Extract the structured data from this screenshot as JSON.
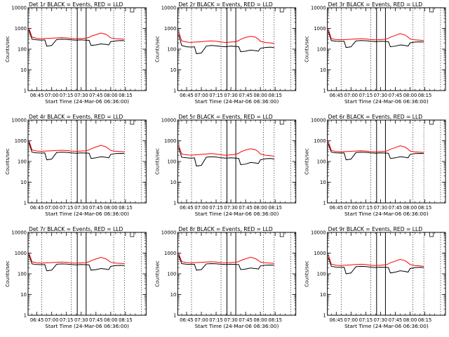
{
  "figure": {
    "ylabel": "Counts/sec",
    "xlabel": "Start Time (24-Mar-06 06:36:00)",
    "colors": {
      "events": "#000000",
      "lld": "#ff0000",
      "background": "#ffffff"
    }
  },
  "chart_data": [
    {
      "type": "line",
      "title": "Det 1r BLACK = Events, RED = LLD",
      "ylabel": "Counts/sec",
      "xlabel": "Start Time (24-Mar-06 06:36:00)",
      "y_scale": "log",
      "ylim": [
        1,
        10000
      ],
      "y_ticks": [
        "1",
        "10",
        "100",
        "1000",
        "10000"
      ],
      "x_ticks": [
        "06:45",
        "07:00",
        "07:15",
        "07:30",
        "07:45",
        "08:00",
        "08:15"
      ],
      "x": [
        "06:37",
        "06:40",
        "06:45",
        "06:50",
        "06:53",
        "06:55",
        "07:00",
        "07:05",
        "07:10",
        "07:15",
        "07:20",
        "07:25",
        "07:30",
        "07:35",
        "07:38",
        "07:40",
        "07:45",
        "07:50",
        "07:55",
        "07:58",
        "08:00",
        "08:05",
        "08:10",
        "08:14"
      ],
      "series": [
        {
          "name": "BLACK = Events",
          "values": [
            800,
            300,
            280,
            270,
            280,
            140,
            150,
            290,
            300,
            295,
            280,
            270,
            280,
            270,
            265,
            150,
            160,
            180,
            170,
            160,
            230,
            250,
            260,
            255
          ]
        },
        {
          "name": "RED = LLD",
          "values": [
            1000,
            380,
            330,
            320,
            330,
            330,
            340,
            350,
            360,
            350,
            330,
            320,
            330,
            340,
            370,
            420,
            500,
            600,
            520,
            420,
            350,
            320,
            310,
            300
          ]
        }
      ]
    },
    {
      "type": "line",
      "title": "Det 2r BLACK = Events, RED = LLD",
      "ylabel": "Counts/sec",
      "xlabel": "Start Time (24-Mar-06 06:36:00)",
      "y_scale": "log",
      "ylim": [
        1,
        10000
      ],
      "y_ticks": [
        "1",
        "10",
        "100",
        "1000",
        "10000"
      ],
      "x_ticks": [
        "06:45",
        "07:00",
        "07:15",
        "07:30",
        "07:45",
        "08:00",
        "08:15"
      ],
      "x": [
        "06:37",
        "06:40",
        "06:45",
        "06:50",
        "06:53",
        "06:55",
        "07:00",
        "07:05",
        "07:10",
        "07:15",
        "07:20",
        "07:25",
        "07:30",
        "07:35",
        "07:38",
        "07:40",
        "07:45",
        "07:50",
        "07:55",
        "07:58",
        "08:00",
        "08:05",
        "08:10",
        "08:14"
      ],
      "series": [
        {
          "name": "BLACK = Events",
          "values": [
            500,
            150,
            130,
            125,
            130,
            60,
            65,
            140,
            150,
            145,
            135,
            130,
            140,
            135,
            130,
            75,
            80,
            90,
            85,
            80,
            110,
            120,
            125,
            120
          ]
        },
        {
          "name": "RED = LLD",
          "values": [
            700,
            250,
            220,
            210,
            220,
            220,
            230,
            240,
            250,
            240,
            220,
            210,
            220,
            230,
            260,
            300,
            370,
            420,
            380,
            300,
            240,
            210,
            200,
            190
          ]
        }
      ]
    },
    {
      "type": "line",
      "title": "Det 3r BLACK = Events, RED = LLD",
      "ylabel": "Counts/sec",
      "xlabel": "Start Time (24-Mar-06 06:36:00)",
      "y_scale": "log",
      "ylim": [
        1,
        10000
      ],
      "y_ticks": [
        "1",
        "10",
        "100",
        "1000",
        "10000"
      ],
      "x_ticks": [
        "06:45",
        "07:00",
        "07:15",
        "07:30",
        "07:45",
        "08:00",
        "08:15"
      ],
      "x": [
        "06:37",
        "06:40",
        "06:45",
        "06:50",
        "06:53",
        "06:55",
        "07:00",
        "07:05",
        "07:10",
        "07:15",
        "07:20",
        "07:25",
        "07:30",
        "07:35",
        "07:38",
        "07:40",
        "07:45",
        "07:50",
        "07:55",
        "07:58",
        "08:00",
        "08:05",
        "08:10",
        "08:14"
      ],
      "series": [
        {
          "name": "BLACK = Events",
          "values": [
            700,
            260,
            240,
            235,
            240,
            120,
            130,
            250,
            260,
            255,
            240,
            230,
            240,
            235,
            230,
            130,
            140,
            160,
            150,
            140,
            200,
            220,
            225,
            220
          ]
        },
        {
          "name": "RED = LLD",
          "values": [
            900,
            320,
            290,
            280,
            290,
            290,
            300,
            310,
            320,
            310,
            290,
            280,
            290,
            300,
            330,
            380,
            460,
            560,
            480,
            380,
            310,
            280,
            270,
            260
          ]
        }
      ]
    },
    {
      "type": "line",
      "title": "Det 4r BLACK = Events, RED = LLD",
      "ylabel": "Counts/sec",
      "xlabel": "Start Time (24-Mar-06 06:36:00)",
      "y_scale": "log",
      "ylim": [
        1,
        10000
      ],
      "y_ticks": [
        "1",
        "10",
        "100",
        "1000",
        "10000"
      ],
      "x_ticks": [
        "06:45",
        "07:00",
        "07:15",
        "07:30",
        "07:45",
        "08:00",
        "08:15"
      ],
      "x": [
        "06:37",
        "06:40",
        "06:45",
        "06:50",
        "06:53",
        "06:55",
        "07:00",
        "07:05",
        "07:10",
        "07:15",
        "07:20",
        "07:25",
        "07:30",
        "07:35",
        "07:38",
        "07:40",
        "07:45",
        "07:50",
        "07:55",
        "07:58",
        "08:00",
        "08:05",
        "08:10",
        "08:14"
      ],
      "series": [
        {
          "name": "BLACK = Events",
          "values": [
            800,
            280,
            260,
            255,
            260,
            120,
            130,
            270,
            280,
            275,
            260,
            250,
            260,
            255,
            250,
            140,
            150,
            170,
            160,
            150,
            220,
            240,
            245,
            240
          ]
        },
        {
          "name": "RED = LLD",
          "values": [
            1000,
            360,
            320,
            310,
            320,
            320,
            330,
            340,
            350,
            340,
            320,
            310,
            320,
            330,
            360,
            410,
            500,
            600,
            510,
            410,
            340,
            310,
            300,
            290
          ]
        }
      ]
    },
    {
      "type": "line",
      "title": "Det 5r BLACK = Events, RED = LLD",
      "ylabel": "Counts/sec",
      "xlabel": "Start Time (24-Mar-06 06:36:00)",
      "y_scale": "log",
      "ylim": [
        1,
        10000
      ],
      "y_ticks": [
        "1",
        "10",
        "100",
        "1000",
        "10000"
      ],
      "x_ticks": [
        "06:45",
        "07:00",
        "07:15",
        "07:30",
        "07:45",
        "08:00",
        "08:15"
      ],
      "x": [
        "06:37",
        "06:40",
        "06:45",
        "06:50",
        "06:53",
        "06:55",
        "07:00",
        "07:05",
        "07:10",
        "07:15",
        "07:20",
        "07:25",
        "07:30",
        "07:35",
        "07:38",
        "07:40",
        "07:45",
        "07:50",
        "07:55",
        "07:58",
        "08:00",
        "08:05",
        "08:10",
        "08:14"
      ],
      "series": [
        {
          "name": "BLACK = Events",
          "values": [
            450,
            160,
            150,
            145,
            150,
            60,
            65,
            160,
            170,
            165,
            150,
            145,
            150,
            145,
            140,
            70,
            75,
            90,
            85,
            80,
            120,
            135,
            140,
            130
          ]
        },
        {
          "name": "RED = LLD",
          "values": [
            600,
            230,
            210,
            200,
            210,
            210,
            220,
            230,
            240,
            230,
            210,
            200,
            210,
            220,
            250,
            290,
            360,
            410,
            370,
            290,
            230,
            200,
            190,
            180
          ]
        }
      ]
    },
    {
      "type": "line",
      "title": "Det 6r BLACK = Events, RED = LLD",
      "ylabel": "Counts/sec",
      "xlabel": "Start Time (24-Mar-06 06:36:00)",
      "y_scale": "log",
      "ylim": [
        1,
        10000
      ],
      "y_ticks": [
        "1",
        "10",
        "100",
        "1000",
        "10000"
      ],
      "x_ticks": [
        "06:45",
        "07:00",
        "07:15",
        "07:30",
        "07:45",
        "08:00",
        "08:15"
      ],
      "x": [
        "06:37",
        "06:40",
        "06:45",
        "06:50",
        "06:53",
        "06:55",
        "07:00",
        "07:05",
        "07:10",
        "07:15",
        "07:20",
        "07:25",
        "07:30",
        "07:35",
        "07:38",
        "07:40",
        "07:45",
        "07:50",
        "07:55",
        "07:58",
        "08:00",
        "08:05",
        "08:10",
        "08:14"
      ],
      "series": [
        {
          "name": "BLACK = Events",
          "values": [
            700,
            280,
            260,
            255,
            260,
            120,
            130,
            270,
            280,
            275,
            260,
            250,
            260,
            255,
            250,
            140,
            150,
            170,
            160,
            150,
            220,
            240,
            245,
            240
          ]
        },
        {
          "name": "RED = LLD",
          "values": [
            900,
            340,
            300,
            290,
            300,
            300,
            310,
            320,
            330,
            320,
            300,
            290,
            300,
            310,
            340,
            390,
            470,
            570,
            490,
            390,
            320,
            290,
            280,
            270
          ]
        }
      ]
    },
    {
      "type": "line",
      "title": "Det 7r BLACK = Events, RED = LLD",
      "ylabel": "Counts/sec",
      "xlabel": "Start Time (24-Mar-06 06:36:00)",
      "y_scale": "log",
      "ylim": [
        1,
        10000
      ],
      "y_ticks": [
        "1",
        "10",
        "100",
        "1000",
        "10000"
      ],
      "x_ticks": [
        "06:45",
        "07:00",
        "07:15",
        "07:30",
        "07:45",
        "08:00",
        "08:15"
      ],
      "x": [
        "06:37",
        "06:40",
        "06:45",
        "06:50",
        "06:53",
        "06:55",
        "07:00",
        "07:05",
        "07:10",
        "07:15",
        "07:20",
        "07:25",
        "07:30",
        "07:35",
        "07:38",
        "07:40",
        "07:45",
        "07:50",
        "07:55",
        "07:58",
        "08:00",
        "08:05",
        "08:10",
        "08:14"
      ],
      "series": [
        {
          "name": "BLACK = Events",
          "values": [
            800,
            300,
            280,
            275,
            280,
            140,
            150,
            290,
            300,
            295,
            280,
            270,
            280,
            275,
            270,
            150,
            160,
            180,
            170,
            160,
            230,
            250,
            255,
            250
          ]
        },
        {
          "name": "RED = LLD",
          "values": [
            1000,
            380,
            340,
            330,
            340,
            340,
            350,
            360,
            370,
            360,
            340,
            330,
            340,
            350,
            380,
            430,
            520,
            620,
            530,
            430,
            360,
            330,
            320,
            310
          ]
        }
      ]
    },
    {
      "type": "line",
      "title": "Det 8r BLACK = Events, RED = LLD",
      "ylabel": "Counts/sec",
      "xlabel": "Start Time (24-Mar-06 06:36:00)",
      "y_scale": "log",
      "ylim": [
        1,
        10000
      ],
      "y_ticks": [
        "1",
        "10",
        "100",
        "1000",
        "10000"
      ],
      "x_ticks": [
        "06:45",
        "07:00",
        "07:15",
        "07:30",
        "07:45",
        "08:00",
        "08:15"
      ],
      "x": [
        "06:37",
        "06:40",
        "06:45",
        "06:50",
        "06:53",
        "06:55",
        "07:00",
        "07:05",
        "07:10",
        "07:15",
        "07:20",
        "07:25",
        "07:30",
        "07:35",
        "07:38",
        "07:40",
        "07:45",
        "07:50",
        "07:55",
        "07:58",
        "08:00",
        "08:05",
        "08:10",
        "08:14"
      ],
      "series": [
        {
          "name": "BLACK = Events",
          "values": [
            750,
            310,
            290,
            285,
            290,
            150,
            160,
            300,
            310,
            305,
            290,
            280,
            290,
            285,
            280,
            160,
            170,
            190,
            180,
            170,
            240,
            260,
            265,
            260
          ]
        },
        {
          "name": "RED = LLD",
          "values": [
            950,
            390,
            350,
            340,
            350,
            350,
            360,
            370,
            380,
            370,
            350,
            340,
            350,
            360,
            390,
            440,
            530,
            630,
            540,
            440,
            370,
            340,
            330,
            320
          ]
        }
      ]
    },
    {
      "type": "line",
      "title": "Det 9r BLACK = Events, RED = LLD",
      "ylabel": "Counts/sec",
      "xlabel": "Start Time (24-Mar-06 06:36:00)",
      "y_scale": "log",
      "ylim": [
        1,
        10000
      ],
      "y_ticks": [
        "1",
        "10",
        "100",
        "1000",
        "10000"
      ],
      "x_ticks": [
        "06:45",
        "07:00",
        "07:15",
        "07:30",
        "07:45",
        "08:00",
        "08:15"
      ],
      "x": [
        "06:37",
        "06:40",
        "06:45",
        "06:50",
        "06:53",
        "06:55",
        "07:00",
        "07:05",
        "07:10",
        "07:15",
        "07:20",
        "07:25",
        "07:30",
        "07:35",
        "07:38",
        "07:40",
        "07:45",
        "07:50",
        "07:55",
        "07:58",
        "08:00",
        "08:05",
        "08:10",
        "08:14"
      ],
      "series": [
        {
          "name": "BLACK = Events",
          "values": [
            600,
            230,
            210,
            205,
            210,
            100,
            110,
            220,
            230,
            225,
            210,
            200,
            210,
            205,
            200,
            110,
            120,
            140,
            130,
            120,
            180,
            200,
            205,
            200
          ]
        },
        {
          "name": "RED = LLD",
          "values": [
            800,
            290,
            260,
            250,
            260,
            260,
            270,
            280,
            290,
            280,
            260,
            250,
            260,
            270,
            300,
            340,
            410,
            500,
            430,
            340,
            280,
            250,
            240,
            230
          ]
        }
      ]
    }
  ]
}
